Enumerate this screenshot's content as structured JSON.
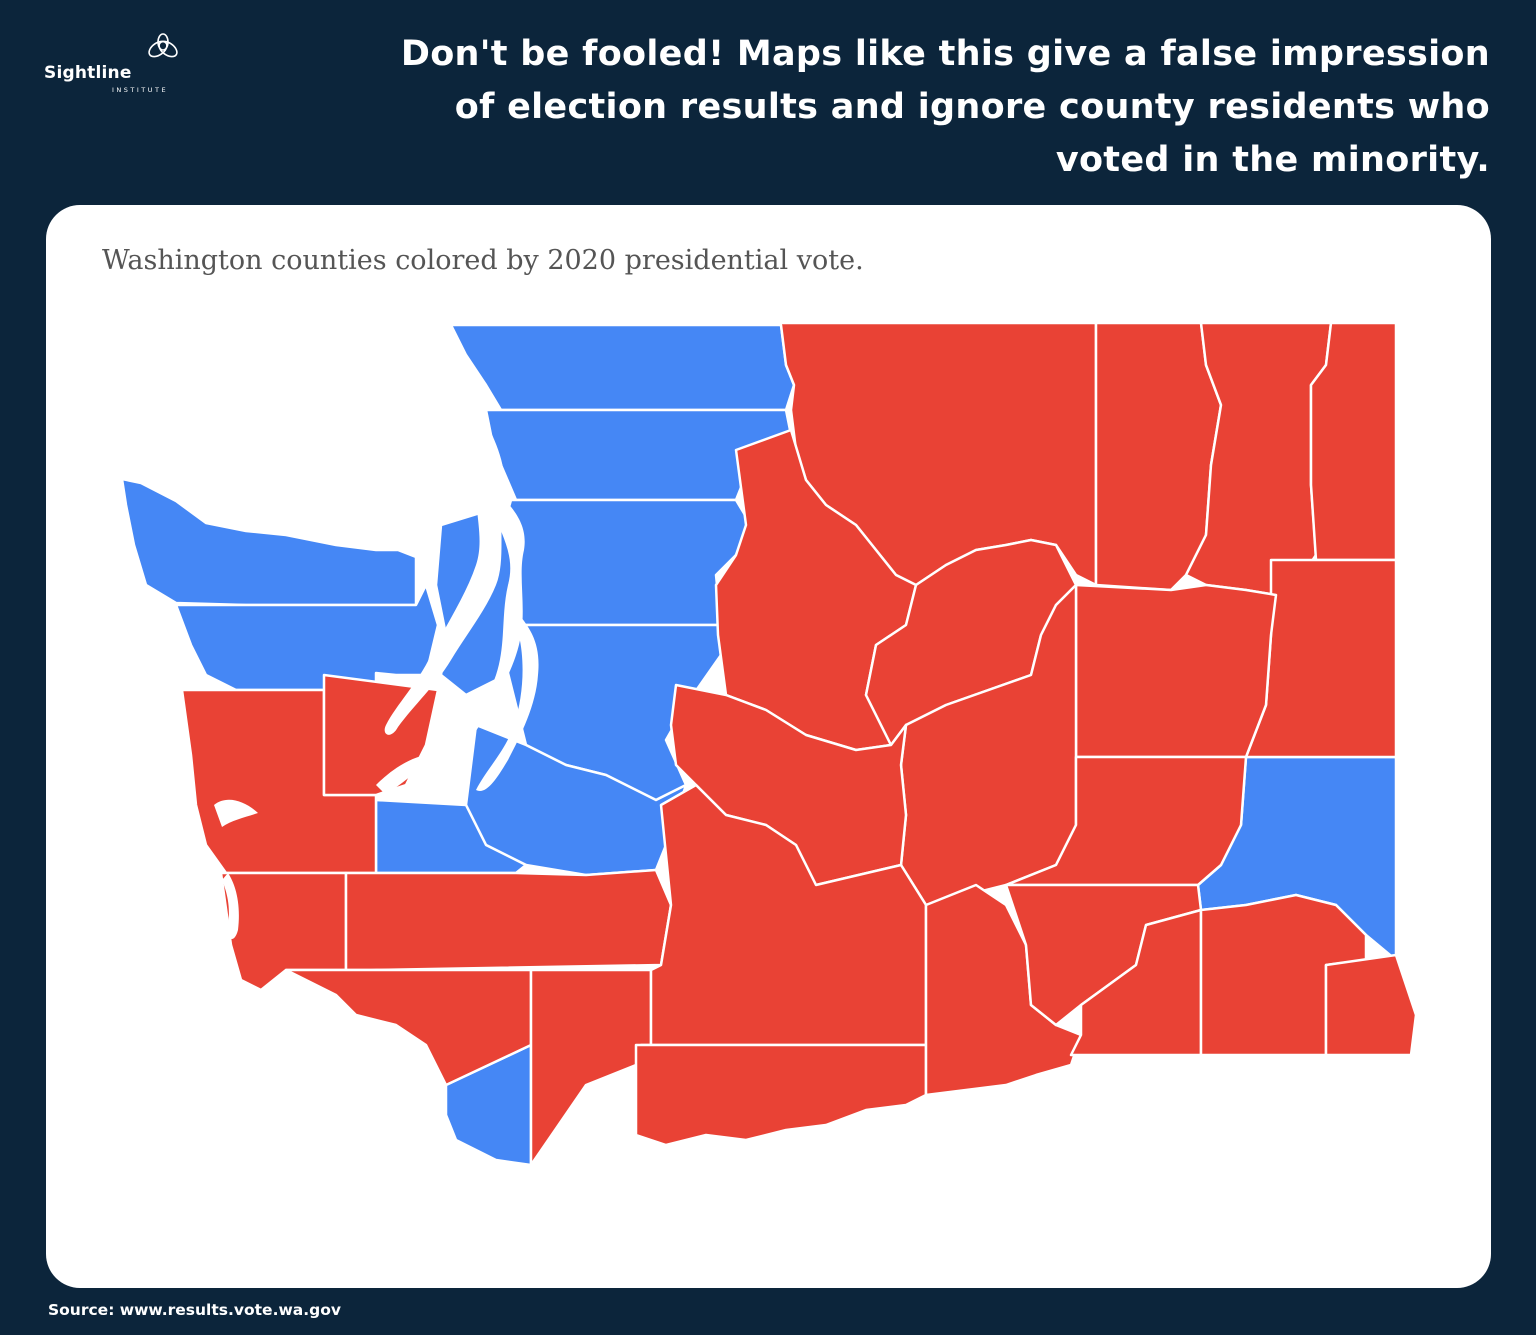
{
  "logo": {
    "name": "Sightline",
    "sub": "INSTITUTE",
    "icon": "sightline-logo-icon"
  },
  "headline": "Don't be fooled! Maps like this give a false impression of election results and ignore county residents who voted in the minority.",
  "map": {
    "subtitle": "Washington counties colored by 2020 presidential vote.",
    "colors": {
      "blue": "#4587f5",
      "red": "#e94235",
      "water": "#ffffff",
      "border": "#ffffff"
    }
  },
  "source": "Source: www.results.vote.wa.gov"
}
